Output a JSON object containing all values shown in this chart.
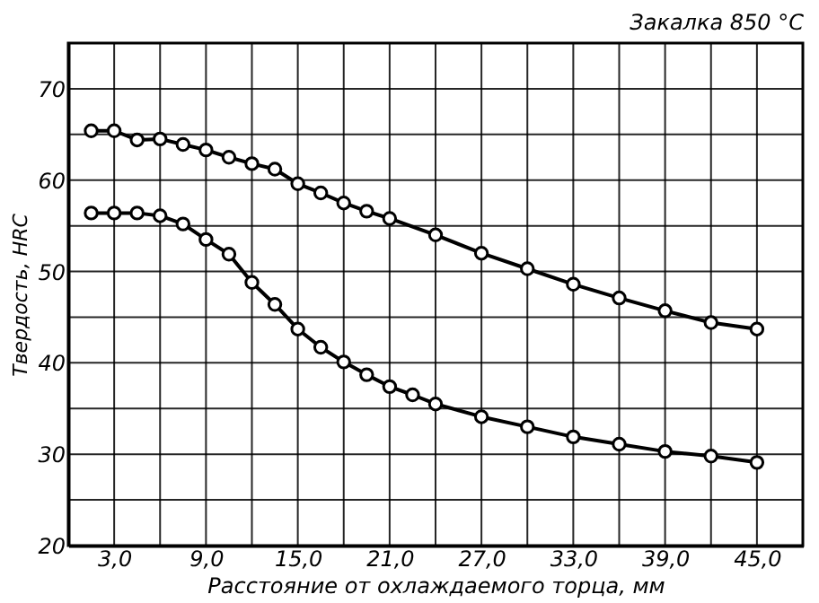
{
  "chart_data": {
    "type": "line",
    "title": "Закалка 850 °C",
    "xlabel": "Расстояние от охлаждаемого торца, мм",
    "ylabel": "Твердость, HRC",
    "series": [
      {
        "color": "#000000",
        "x": [
          1.5,
          3,
          4.5,
          6,
          7.5,
          9,
          10.5,
          12,
          13.5,
          15,
          16.5,
          18,
          19.5,
          21,
          24,
          27,
          30,
          33,
          36,
          39,
          42,
          45
        ],
        "values": [
          65.4,
          65.4,
          64.4,
          64.5,
          63.9,
          63.3,
          62.5,
          61.8,
          61.2,
          59.6,
          58.6,
          57.5,
          56.6,
          55.8,
          54.0,
          52.0,
          50.3,
          48.6,
          47.1,
          45.7,
          44.4,
          43.7
        ]
      },
      {
        "color": "#000000",
        "x": [
          1.5,
          3,
          4.5,
          6,
          7.5,
          9,
          10.5,
          12,
          13.5,
          15,
          16.5,
          18,
          19.5,
          21,
          22.5,
          24,
          27,
          30,
          33,
          36,
          39,
          42,
          45
        ],
        "values": [
          56.4,
          56.4,
          56.4,
          56.1,
          55.2,
          53.5,
          51.9,
          48.8,
          46.4,
          43.7,
          41.7,
          40.1,
          38.7,
          37.4,
          36.5,
          35.5,
          34.1,
          33.0,
          31.9,
          31.1,
          30.3,
          29.8,
          29.1
        ]
      }
    ],
    "xlim": [
      0,
      48
    ],
    "xticks": [
      {
        "value": 3,
        "label": "3,0"
      },
      {
        "value": 6,
        "label": null
      },
      {
        "value": 9,
        "label": "9,0"
      },
      {
        "value": 12,
        "label": null
      },
      {
        "value": 15,
        "label": "15,0"
      },
      {
        "value": 18,
        "label": null
      },
      {
        "value": 21,
        "label": "21,0"
      },
      {
        "value": 24,
        "label": null
      },
      {
        "value": 27,
        "label": "27,0"
      },
      {
        "value": 30,
        "label": null
      },
      {
        "value": 33,
        "label": "33,0"
      },
      {
        "value": 36,
        "label": null
      },
      {
        "value": 39,
        "label": "39,0"
      },
      {
        "value": 42,
        "label": null
      },
      {
        "value": 45,
        "label": "45,0"
      }
    ],
    "ylim": [
      20,
      75
    ],
    "yticks": [
      20,
      {
        "value": 25,
        "label": null
      },
      30,
      {
        "value": 35,
        "label": null
      },
      40,
      {
        "value": 45,
        "label": null
      },
      50,
      {
        "value": 55,
        "label": null
      },
      60,
      {
        "value": 65,
        "label": null
      },
      70
    ],
    "grid": true,
    "legend": false,
    "marker": "circle",
    "line_style": "solid"
  }
}
